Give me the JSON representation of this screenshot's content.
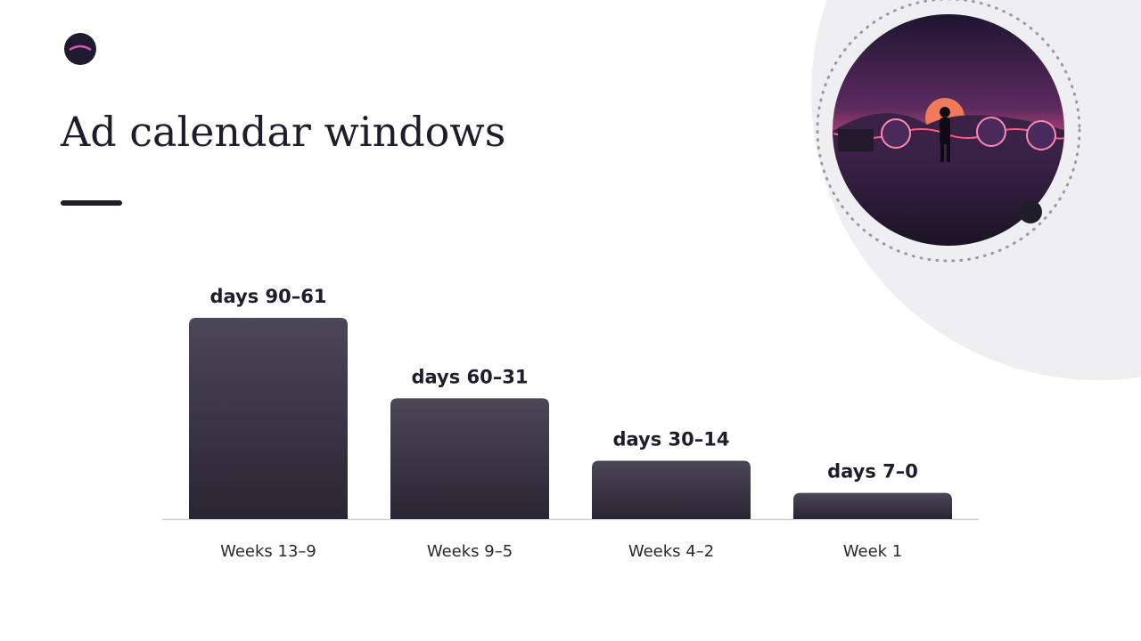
{
  "chart_data": {
    "type": "bar",
    "title": "Ad calendar windows",
    "categories": [
      "Weeks 13–9",
      "Weeks 9–5",
      "Weeks 4–2",
      "Week 1"
    ],
    "bar_labels": [
      "days 90–61",
      "days 60–31",
      "days 30–14",
      "days 7–0"
    ],
    "values": [
      100,
      60,
      29,
      13
    ],
    "ylim": [
      0,
      100
    ],
    "color": "#2a2533"
  }
}
